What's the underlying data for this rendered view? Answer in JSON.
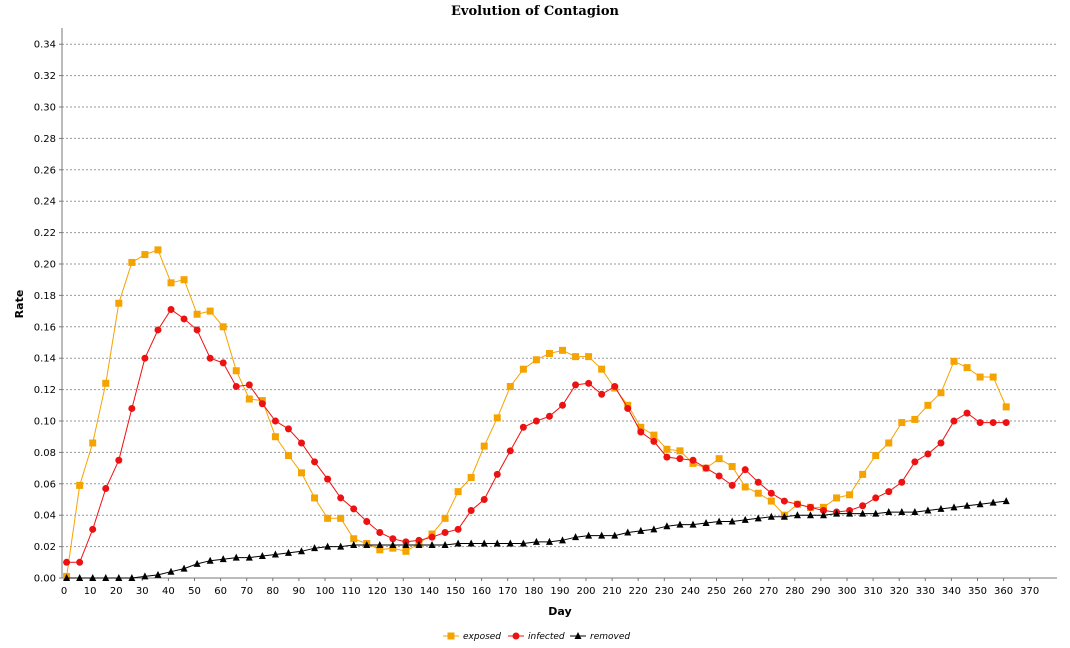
{
  "chart_data": {
    "type": "line",
    "title": "Evolution of Contagion",
    "xlabel": "Day",
    "ylabel": "Rate",
    "xlim": [
      0,
      375
    ],
    "ylim": [
      0,
      0.35
    ],
    "xticks": [
      "0",
      "10",
      "20",
      "30",
      "40",
      "50",
      "60",
      "70",
      "80",
      "90",
      "100",
      "110",
      "120",
      "130",
      "140",
      "150",
      "160",
      "170",
      "180",
      "190",
      "200",
      "210",
      "220",
      "230",
      "240",
      "250",
      "260",
      "270",
      "280",
      "290",
      "300",
      "310",
      "320",
      "330",
      "340",
      "350",
      "360",
      "370"
    ],
    "yticks": [
      "0.00",
      "0.02",
      "0.04",
      "0.06",
      "0.08",
      "0.10",
      "0.12",
      "0.14",
      "0.16",
      "0.18",
      "0.20",
      "0.22",
      "0.24",
      "0.26",
      "0.28",
      "0.30",
      "0.32",
      "0.34"
    ],
    "grid": "horizontal dashed",
    "legend_position": "bottom-center",
    "x": [
      1,
      6,
      11,
      16,
      21,
      26,
      31,
      36,
      41,
      46,
      51,
      56,
      61,
      66,
      71,
      76,
      81,
      86,
      91,
      96,
      101,
      106,
      111,
      116,
      121,
      126,
      131,
      136,
      141,
      146,
      151,
      156,
      161,
      166,
      171,
      176,
      181,
      186,
      191,
      196,
      201,
      206,
      211,
      216,
      221,
      226,
      231,
      236,
      241,
      246,
      251,
      256,
      261,
      266,
      271,
      276,
      281,
      286,
      291,
      296,
      301,
      306,
      311,
      316,
      321,
      326,
      331,
      336,
      341,
      346,
      351,
      356,
      361
    ],
    "series": [
      {
        "name": "exposed",
        "color": "#f5a300",
        "marker": "square",
        "values": [
          0.001,
          0.059,
          0.086,
          0.124,
          0.175,
          0.201,
          0.206,
          0.209,
          0.188,
          0.19,
          0.168,
          0.17,
          0.16,
          0.132,
          0.114,
          0.113,
          0.09,
          0.078,
          0.067,
          0.051,
          0.038,
          0.038,
          0.025,
          0.022,
          0.018,
          0.019,
          0.017,
          0.022,
          0.028,
          0.038,
          0.055,
          0.064,
          0.084,
          0.102,
          0.122,
          0.133,
          0.139,
          0.143,
          0.145,
          0.141,
          0.141,
          0.133,
          0.121,
          0.11,
          0.096,
          0.091,
          0.082,
          0.081,
          0.073,
          0.07,
          0.076,
          0.071,
          0.058,
          0.054,
          0.049,
          0.04,
          0.047,
          0.045,
          0.045,
          0.051,
          0.053,
          0.066,
          0.078,
          0.086,
          0.099,
          0.101,
          0.11,
          0.118,
          0.138,
          0.134,
          0.128,
          0.128,
          0.109
        ]
      },
      {
        "name": "infected",
        "color": "#ee1111",
        "marker": "circle",
        "values": [
          0.01,
          0.01,
          0.031,
          0.057,
          0.075,
          0.108,
          0.14,
          0.158,
          0.171,
          0.165,
          0.158,
          0.14,
          0.137,
          0.122,
          0.123,
          0.111,
          0.1,
          0.095,
          0.086,
          0.074,
          0.063,
          0.051,
          0.044,
          0.036,
          0.029,
          0.025,
          0.023,
          0.024,
          0.026,
          0.029,
          0.031,
          0.043,
          0.05,
          0.066,
          0.081,
          0.096,
          0.1,
          0.103,
          0.11,
          0.123,
          0.124,
          0.117,
          0.122,
          0.108,
          0.093,
          0.087,
          0.077,
          0.076,
          0.075,
          0.07,
          0.065,
          0.059,
          0.069,
          0.061,
          0.054,
          0.049,
          0.047,
          0.045,
          0.043,
          0.042,
          0.043,
          0.046,
          0.051,
          0.055,
          0.061,
          0.074,
          0.079,
          0.086,
          0.1,
          0.105,
          0.099,
          0.099,
          0.099
        ]
      },
      {
        "name": "removed",
        "color": "#000000",
        "marker": "triangle",
        "values": [
          0.0,
          0.0,
          0.0,
          0.0,
          0.0,
          0.0,
          0.001,
          0.002,
          0.004,
          0.006,
          0.009,
          0.011,
          0.012,
          0.013,
          0.013,
          0.014,
          0.015,
          0.016,
          0.017,
          0.019,
          0.02,
          0.02,
          0.021,
          0.021,
          0.021,
          0.021,
          0.021,
          0.021,
          0.021,
          0.021,
          0.022,
          0.022,
          0.022,
          0.022,
          0.022,
          0.022,
          0.023,
          0.023,
          0.024,
          0.026,
          0.027,
          0.027,
          0.027,
          0.029,
          0.03,
          0.031,
          0.033,
          0.034,
          0.034,
          0.035,
          0.036,
          0.036,
          0.037,
          0.038,
          0.039,
          0.039,
          0.04,
          0.04,
          0.04,
          0.041,
          0.041,
          0.041,
          0.041,
          0.042,
          0.042,
          0.042,
          0.043,
          0.044,
          0.045,
          0.046,
          0.047,
          0.048,
          0.049
        ]
      }
    ]
  }
}
